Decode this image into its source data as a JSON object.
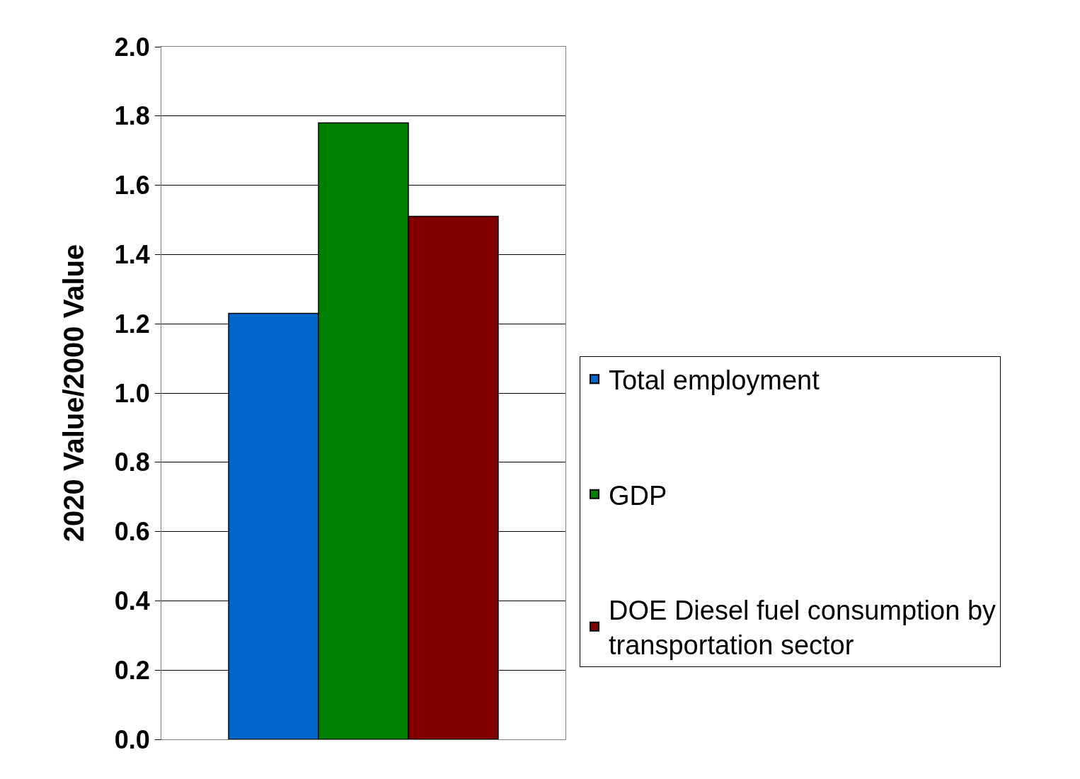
{
  "chart_data": {
    "type": "bar",
    "ylabel": "2020 Value/2000 Value",
    "categories": [
      null
    ],
    "series": [
      {
        "name": "Total employment",
        "color": "#0066cc",
        "values": [
          1.23
        ]
      },
      {
        "name": "GDP",
        "color": "#008000",
        "values": [
          1.78
        ]
      },
      {
        "name": "DOE Diesel fuel consumption by transportation sector",
        "color": "#800000",
        "values": [
          1.51
        ]
      }
    ],
    "ylim": [
      0,
      2.0
    ],
    "yticks": [
      {
        "value": 0,
        "label": "0.0"
      },
      0.2,
      0.4,
      0.6,
      0.8,
      {
        "value": 1,
        "label": "1.0"
      },
      1.2,
      1.4,
      1.6,
      1.8,
      {
        "value": 2,
        "label": "2.0"
      }
    ],
    "grid": "y",
    "legend": "right"
  }
}
